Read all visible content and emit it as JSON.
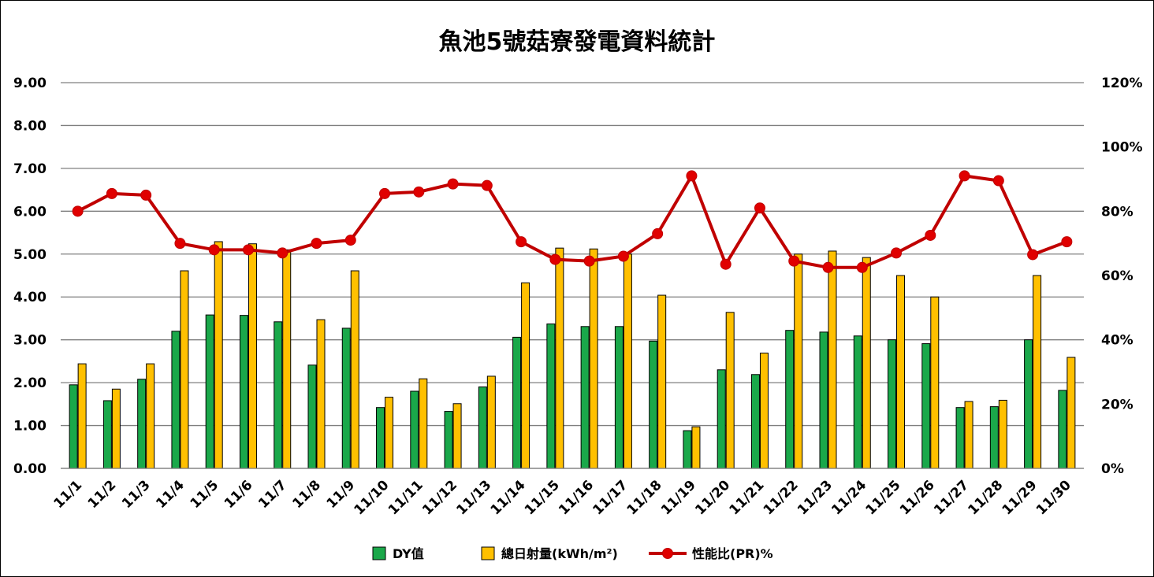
{
  "chart_data": {
    "type": "bar",
    "title": "魚池5號菇寮發電資料統計",
    "categories": [
      "11/1",
      "11/2",
      "11/3",
      "11/4",
      "11/5",
      "11/6",
      "11/7",
      "11/8",
      "11/9",
      "11/10",
      "11/11",
      "11/12",
      "11/13",
      "11/14",
      "11/15",
      "11/16",
      "11/17",
      "11/18",
      "11/19",
      "11/20",
      "11/21",
      "11/22",
      "11/23",
      "11/24",
      "11/25",
      "11/26",
      "11/27",
      "11/28",
      "11/29",
      "11/30"
    ],
    "series": [
      {
        "name": "DY值",
        "type": "bar",
        "axis": "left",
        "color": "#1aa84a",
        "values": [
          1.95,
          1.58,
          2.08,
          3.2,
          3.58,
          3.57,
          3.42,
          2.41,
          3.27,
          1.42,
          1.8,
          1.33,
          1.9,
          3.06,
          3.37,
          3.31,
          3.31,
          2.97,
          0.88,
          2.3,
          2.19,
          3.22,
          3.18,
          3.09,
          3.0,
          2.91,
          1.42,
          1.44,
          3.0,
          1.82
        ]
      },
      {
        "name": "總日射量(kWh/m²)",
        "type": "bar",
        "axis": "left",
        "color": "#ffc000",
        "values": [
          2.44,
          1.85,
          2.44,
          4.61,
          5.29,
          5.24,
          5.1,
          3.47,
          4.61,
          1.66,
          2.09,
          1.51,
          2.15,
          4.33,
          5.14,
          5.12,
          5.0,
          4.04,
          0.97,
          3.64,
          2.69,
          5.0,
          5.07,
          4.92,
          4.5,
          4.0,
          1.56,
          1.59,
          4.5,
          2.59
        ]
      },
      {
        "name": "性能比(PR)%",
        "type": "line",
        "axis": "right",
        "color": "#c00000",
        "values": [
          80,
          85.5,
          85,
          70,
          68,
          68,
          67,
          70,
          71,
          85.5,
          86,
          88.5,
          88,
          70.5,
          65,
          64.5,
          66,
          73,
          91,
          63.5,
          81,
          64.5,
          62.5,
          62.5,
          67,
          72.5,
          91,
          89.5,
          66.5,
          70.5
        ]
      }
    ],
    "y_left": {
      "ylim": [
        0,
        9
      ],
      "ticks": [
        "0.00",
        "1.00",
        "2.00",
        "3.00",
        "4.00",
        "5.00",
        "6.00",
        "7.00",
        "8.00",
        "9.00"
      ]
    },
    "y_right": {
      "ylim": [
        0,
        120
      ],
      "ticks": [
        "0%",
        "20%",
        "40%",
        "60%",
        "80%",
        "100%",
        "120%"
      ]
    },
    "grid": true,
    "legend": "bottom-center",
    "gridline_color": "#7f7f7f"
  }
}
